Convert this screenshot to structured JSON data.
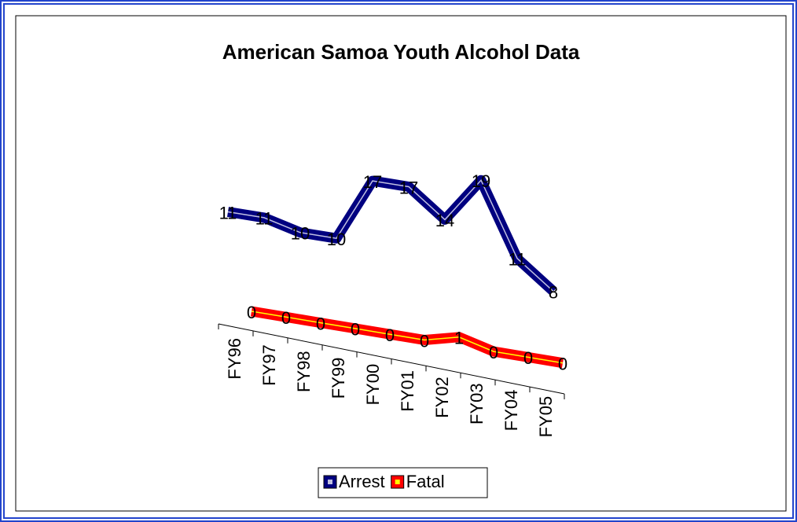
{
  "chart_data": {
    "type": "line",
    "title": "American Samoa Youth Alcohol Data",
    "categories": [
      "FY96",
      "FY97",
      "FY98",
      "FY99",
      "FY00",
      "FY01",
      "FY02",
      "FY03",
      "FY04",
      "FY05"
    ],
    "series": [
      {
        "name": "Arrest",
        "color": "#000080",
        "values": [
          11,
          11,
          10,
          10,
          17,
          17,
          14,
          19,
          11,
          8
        ]
      },
      {
        "name": "Fatal",
        "color": "#ff0000",
        "values": [
          0,
          0,
          0,
          0,
          0,
          0,
          1,
          0,
          0,
          0
        ]
      }
    ],
    "legend": "bottom"
  }
}
